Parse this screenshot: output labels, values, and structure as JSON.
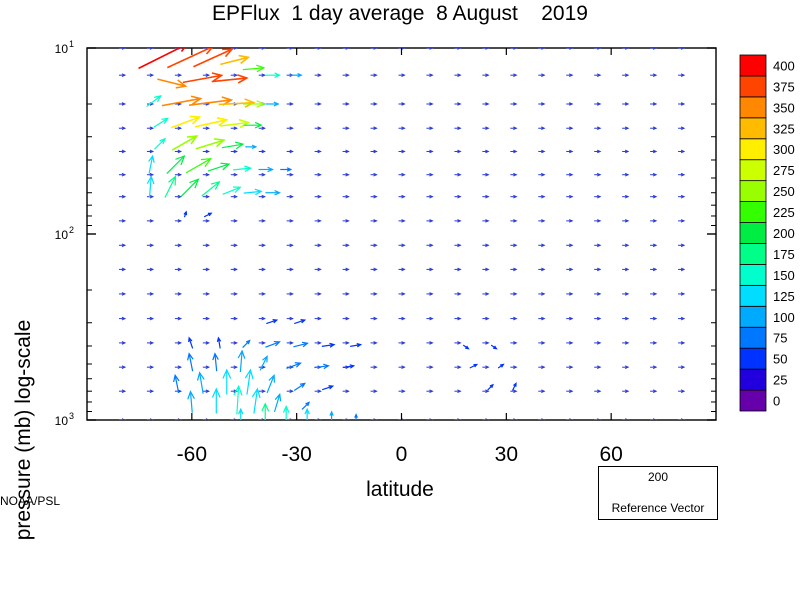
{
  "title": "EPFlux  1 day average  8 August    2019",
  "credit": "NOAA/PSL",
  "reference": {
    "magnitude": "200",
    "label": "Reference Vector",
    "color": "#33ee88"
  },
  "chart_data": {
    "type": "vector",
    "title": "EPFlux  1 day average  8 August    2019",
    "xlabel": "latitude",
    "ylabel": "pressure (mb)  log-scale",
    "xlim": [
      -90,
      90
    ],
    "ylim": [
      1000,
      10
    ],
    "y_scale": "log",
    "x_ticks": [
      {
        "value": -60,
        "label": "-60"
      },
      {
        "value": -30,
        "label": "-30"
      },
      {
        "value": 0,
        "label": "0"
      },
      {
        "value": 30,
        "label": "30"
      },
      {
        "value": 60,
        "label": "60"
      }
    ],
    "y_ticks": [
      {
        "value": 10,
        "base": "10",
        "exp": "1"
      },
      {
        "value": 100,
        "base": "10",
        "exp": "2"
      },
      {
        "value": 1000,
        "base": "10",
        "exp": "3"
      }
    ],
    "colorbar": {
      "levels": [
        "0",
        "25",
        "50",
        "75",
        "100",
        "125",
        "150",
        "175",
        "200",
        "225",
        "250",
        "275",
        "300",
        "325",
        "350",
        "375",
        "400"
      ],
      "colors": [
        "#6600aa",
        "#2200dd",
        "#0033ff",
        "#0077ff",
        "#00aaff",
        "#00ddff",
        "#00ffcc",
        "#00ff88",
        "#00ee44",
        "#33ff00",
        "#99ff00",
        "#ccff00",
        "#ffee00",
        "#ffbb00",
        "#ff8800",
        "#ff4400",
        "#ff0000"
      ]
    },
    "vectors": [
      {
        "lat": -72,
        "p": 12,
        "u": 28,
        "v": 14,
        "mag": 400
      },
      {
        "lat": -64,
        "p": 12,
        "u": 26,
        "v": 12,
        "mag": 390
      },
      {
        "lat": -57,
        "p": 12,
        "u": 22,
        "v": 10,
        "mag": 380
      },
      {
        "lat": -50,
        "p": 12,
        "u": 16,
        "v": 4,
        "mag": 330
      },
      {
        "lat": -44,
        "p": 13,
        "u": 12,
        "v": 1,
        "mag": 240
      },
      {
        "lat": -38,
        "p": 14,
        "u": 8,
        "v": 0,
        "mag": 150
      },
      {
        "lat": -31,
        "p": 14,
        "u": 6,
        "v": 0,
        "mag": 100
      },
      {
        "lat": -68,
        "p": 15,
        "u": 16,
        "v": -4,
        "mag": 360
      },
      {
        "lat": -60,
        "p": 15,
        "u": 22,
        "v": 4,
        "mag": 390
      },
      {
        "lat": -52,
        "p": 15,
        "u": 20,
        "v": 2,
        "mag": 380
      },
      {
        "lat": -72,
        "p": 20,
        "u": 8,
        "v": 6,
        "mag": 170
      },
      {
        "lat": -66,
        "p": 20,
        "u": 22,
        "v": 4,
        "mag": 350
      },
      {
        "lat": -58,
        "p": 20,
        "u": 24,
        "v": 3,
        "mag": 370
      },
      {
        "lat": -50,
        "p": 20,
        "u": 20,
        "v": 1,
        "mag": 340
      },
      {
        "lat": -44,
        "p": 20,
        "u": 12,
        "v": 0,
        "mag": 250
      },
      {
        "lat": -38,
        "p": 20,
        "u": 7,
        "v": 0,
        "mag": 120
      },
      {
        "lat": -70,
        "p": 26,
        "u": 8,
        "v": 5,
        "mag": 170
      },
      {
        "lat": -64,
        "p": 26,
        "u": 16,
        "v": 6,
        "mag": 300
      },
      {
        "lat": -57,
        "p": 26,
        "u": 18,
        "v": 4,
        "mag": 320
      },
      {
        "lat": -50,
        "p": 26,
        "u": 16,
        "v": 2,
        "mag": 290
      },
      {
        "lat": -44,
        "p": 26,
        "u": 10,
        "v": 0,
        "mag": 220
      },
      {
        "lat": -70,
        "p": 34,
        "u": 6,
        "v": 6,
        "mag": 170
      },
      {
        "lat": -64,
        "p": 34,
        "u": 14,
        "v": 8,
        "mag": 260
      },
      {
        "lat": -57,
        "p": 34,
        "u": 16,
        "v": 5,
        "mag": 270
      },
      {
        "lat": -50,
        "p": 34,
        "u": 12,
        "v": 2,
        "mag": 220
      },
      {
        "lat": -44,
        "p": 34,
        "u": 6,
        "v": 0,
        "mag": 120
      },
      {
        "lat": -72,
        "p": 45,
        "u": 2,
        "v": 10,
        "mag": 130
      },
      {
        "lat": -66,
        "p": 45,
        "u": 10,
        "v": 10,
        "mag": 220
      },
      {
        "lat": -60,
        "p": 45,
        "u": 14,
        "v": 8,
        "mag": 240
      },
      {
        "lat": -54,
        "p": 45,
        "u": 12,
        "v": 4,
        "mag": 210
      },
      {
        "lat": -47,
        "p": 45,
        "u": 10,
        "v": 1,
        "mag": 170
      },
      {
        "lat": -40,
        "p": 45,
        "u": 8,
        "v": 0,
        "mag": 120
      },
      {
        "lat": -34,
        "p": 45,
        "u": 6,
        "v": 0,
        "mag": 90
      },
      {
        "lat": -72,
        "p": 60,
        "u": 1,
        "v": 12,
        "mag": 140
      },
      {
        "lat": -67,
        "p": 60,
        "u": 6,
        "v": 12,
        "mag": 180
      },
      {
        "lat": -62,
        "p": 60,
        "u": 10,
        "v": 10,
        "mag": 200
      },
      {
        "lat": -56,
        "p": 60,
        "u": 10,
        "v": 8,
        "mag": 180
      },
      {
        "lat": -50,
        "p": 60,
        "u": 10,
        "v": 4,
        "mag": 160
      },
      {
        "lat": -44,
        "p": 60,
        "u": 10,
        "v": 1,
        "mag": 130
      },
      {
        "lat": -38,
        "p": 60,
        "u": 8,
        "v": 0,
        "mag": 100
      },
      {
        "lat": -62,
        "p": 80,
        "u": 1,
        "v": 3,
        "mag": 60
      },
      {
        "lat": -56,
        "p": 80,
        "u": 4,
        "v": 2,
        "mag": 60
      },
      {
        "lat": -38,
        "p": 300,
        "u": 6,
        "v": 2,
        "mag": 60
      },
      {
        "lat": -30,
        "p": 300,
        "u": 6,
        "v": 2,
        "mag": 60
      },
      {
        "lat": -60,
        "p": 400,
        "u": -2,
        "v": 6,
        "mag": 60
      },
      {
        "lat": -52,
        "p": 400,
        "u": -1,
        "v": 6,
        "mag": 70
      },
      {
        "lat": -45,
        "p": 400,
        "u": 4,
        "v": 4,
        "mag": 80
      },
      {
        "lat": -38,
        "p": 400,
        "u": 8,
        "v": 3,
        "mag": 90
      },
      {
        "lat": -30,
        "p": 400,
        "u": 8,
        "v": 2,
        "mag": 80
      },
      {
        "lat": -22,
        "p": 400,
        "u": 7,
        "v": 1,
        "mag": 70
      },
      {
        "lat": -14,
        "p": 400,
        "u": 6,
        "v": 1,
        "mag": 60
      },
      {
        "lat": -60,
        "p": 520,
        "u": -2,
        "v": 10,
        "mag": 80
      },
      {
        "lat": -53,
        "p": 520,
        "u": -1,
        "v": 10,
        "mag": 90
      },
      {
        "lat": -46,
        "p": 520,
        "u": 1,
        "v": 12,
        "mag": 110
      },
      {
        "lat": -40,
        "p": 520,
        "u": 4,
        "v": 8,
        "mag": 100
      },
      {
        "lat": -32,
        "p": 520,
        "u": 8,
        "v": 3,
        "mag": 90
      },
      {
        "lat": -24,
        "p": 520,
        "u": 8,
        "v": 1,
        "mag": 80
      },
      {
        "lat": -16,
        "p": 520,
        "u": 6,
        "v": 1,
        "mag": 60
      },
      {
        "lat": -64,
        "p": 680,
        "u": -2,
        "v": 10,
        "mag": 90
      },
      {
        "lat": -57,
        "p": 680,
        "u": -2,
        "v": 12,
        "mag": 110
      },
      {
        "lat": -50,
        "p": 680,
        "u": 0,
        "v": 14,
        "mag": 130
      },
      {
        "lat": -44,
        "p": 680,
        "u": 2,
        "v": 14,
        "mag": 140
      },
      {
        "lat": -38,
        "p": 680,
        "u": 4,
        "v": 10,
        "mag": 120
      },
      {
        "lat": -30,
        "p": 680,
        "u": 6,
        "v": 4,
        "mag": 90
      },
      {
        "lat": -22,
        "p": 680,
        "u": 6,
        "v": 2,
        "mag": 70
      },
      {
        "lat": -60,
        "p": 860,
        "u": -1,
        "v": 12,
        "mag": 110
      },
      {
        "lat": -53,
        "p": 860,
        "u": 0,
        "v": 14,
        "mag": 140
      },
      {
        "lat": -47,
        "p": 860,
        "u": 1,
        "v": 16,
        "mag": 150
      },
      {
        "lat": -42,
        "p": 860,
        "u": 2,
        "v": 14,
        "mag": 140
      },
      {
        "lat": -36,
        "p": 860,
        "u": 3,
        "v": 10,
        "mag": 120
      },
      {
        "lat": -28,
        "p": 860,
        "u": 4,
        "v": 4,
        "mag": 90
      },
      {
        "lat": -46,
        "p": 1000,
        "u": 0,
        "v": 8,
        "mag": 130
      },
      {
        "lat": -39,
        "p": 1000,
        "u": 0,
        "v": 12,
        "mag": 180
      },
      {
        "lat": -33,
        "p": 1000,
        "u": 0,
        "v": 10,
        "mag": 160
      },
      {
        "lat": -27,
        "p": 1000,
        "u": 0,
        "v": 8,
        "mag": 140
      },
      {
        "lat": -20,
        "p": 1000,
        "u": 0,
        "v": 6,
        "mag": 120
      },
      {
        "lat": -13,
        "p": 1000,
        "u": 0,
        "v": 4,
        "mag": 90
      },
      {
        "lat": 25,
        "p": 680,
        "u": 3,
        "v": 3,
        "mag": 60
      },
      {
        "lat": 32,
        "p": 680,
        "u": 2,
        "v": 4,
        "mag": 60
      },
      {
        "lat": 20,
        "p": 520,
        "u": 4,
        "v": 2,
        "mag": 55
      },
      {
        "lat": 28,
        "p": 520,
        "u": 3,
        "v": 2,
        "mag": 55
      },
      {
        "lat": 18,
        "p": 400,
        "u": 3,
        "v": -2,
        "mag": 55
      },
      {
        "lat": 26,
        "p": 400,
        "u": 3,
        "v": -2,
        "mag": 55
      }
    ]
  }
}
